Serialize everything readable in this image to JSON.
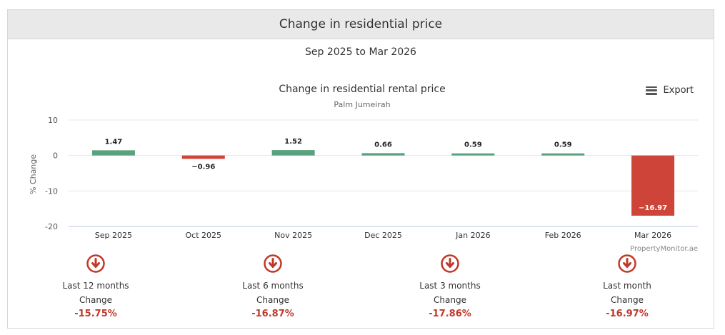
{
  "panel": {
    "title": "Change in residential price",
    "period": "Sep 2025 to Mar 2026",
    "export_label": "Export",
    "credit": "PropertyMonitor.ae"
  },
  "chart_data": {
    "type": "bar",
    "title": "Change in residential rental price",
    "subtitle": "Palm Jumeirah",
    "xlabel": "",
    "ylabel": "% Change",
    "categories": [
      "Sep 2025",
      "Oct 2025",
      "Nov 2025",
      "Dec 2025",
      "Jan 2026",
      "Feb 2026",
      "Mar 2026"
    ],
    "values": [
      1.47,
      -0.96,
      1.52,
      0.66,
      0.59,
      0.59,
      -16.97
    ],
    "value_labels": [
      "1.47",
      "−0.96",
      "1.52",
      "0.66",
      "0.59",
      "0.59",
      "−16.97"
    ],
    "ylim": [
      -20,
      10
    ],
    "yticks": [
      10,
      0,
      -10,
      -20
    ],
    "grid": true,
    "legend": "none",
    "colors": {
      "positive": "#59a27e",
      "negative": "#cf4438"
    }
  },
  "summary": [
    {
      "label": "Last 12 months",
      "sub": "Change",
      "value": "-15.75%",
      "icon": "down-arrow-circle-icon"
    },
    {
      "label": "Last 6 months",
      "sub": "Change",
      "value": "-16.87%",
      "icon": "down-arrow-circle-icon"
    },
    {
      "label": "Last 3 months",
      "sub": "Change",
      "value": "-17.86%",
      "icon": "down-arrow-circle-icon"
    },
    {
      "label": "Last month",
      "sub": "Change",
      "value": "-16.97%",
      "icon": "down-arrow-circle-icon"
    }
  ],
  "colors": {
    "down_accent": "#c0392b"
  }
}
